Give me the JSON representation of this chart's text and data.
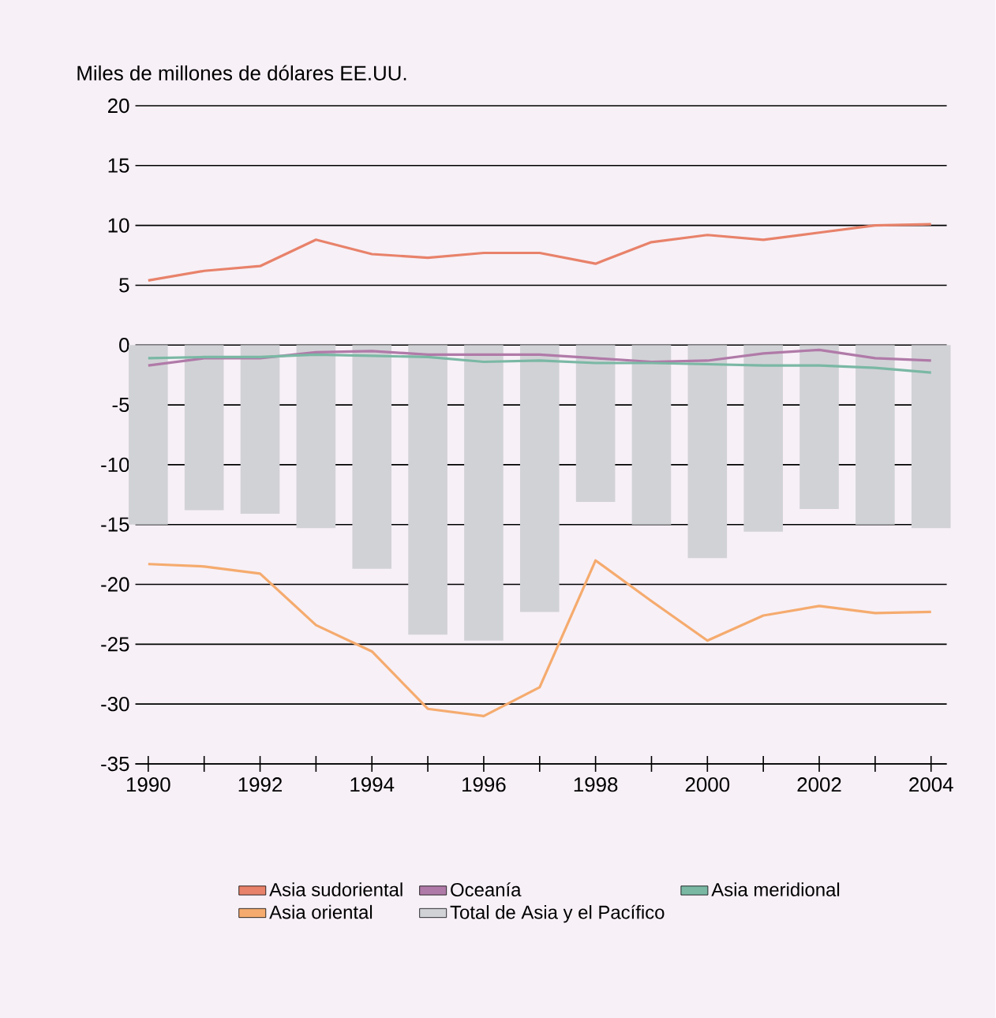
{
  "chart_data": {
    "type": "line",
    "ylabel": "Miles de millones de dólares EE.UU.",
    "x": [
      1990,
      1991,
      1992,
      1993,
      1994,
      1995,
      1996,
      1997,
      1998,
      1999,
      2000,
      2001,
      2002,
      2003,
      2004
    ],
    "xlim": [
      1989.77,
      2004.28
    ],
    "xticks": [
      1990,
      {
        "value": 1991,
        "label": null
      },
      1992,
      {
        "value": 1993,
        "label": null
      },
      1994,
      {
        "value": 1995,
        "label": null
      },
      1996,
      {
        "value": 1997,
        "label": null
      },
      1998,
      {
        "value": 1999,
        "label": null
      },
      2000,
      {
        "value": 2001,
        "label": null
      },
      2002,
      {
        "value": 2003,
        "label": null
      },
      2004
    ],
    "ylim": [
      -35,
      20
    ],
    "yticks": [
      -35,
      -30,
      -25,
      -20,
      -15,
      -10,
      -5,
      0,
      5,
      10,
      15,
      20
    ],
    "grid": "y",
    "legend": "bottom",
    "series": [
      {
        "name": "Asia sudoriental",
        "color": "#e8826a",
        "values": [
          5.4,
          6.2,
          6.6,
          8.8,
          7.6,
          7.3,
          7.7,
          7.7,
          6.8,
          8.6,
          9.2,
          8.8,
          9.4,
          10.0,
          10.1
        ]
      },
      {
        "name": "Oceanía",
        "color": "#b07aa8",
        "values": [
          -1.7,
          -1.1,
          -1.1,
          -0.6,
          -0.5,
          -0.8,
          -0.8,
          -0.8,
          -1.1,
          -1.4,
          -1.3,
          -0.7,
          -0.4,
          -1.1,
          -1.3
        ]
      },
      {
        "name": "Asia meridional",
        "color": "#7ab8a4",
        "values": [
          -1.1,
          -1.0,
          -1.0,
          -0.8,
          -0.9,
          -1.0,
          -1.4,
          -1.3,
          -1.5,
          -1.5,
          -1.6,
          -1.7,
          -1.7,
          -1.9,
          -2.3
        ]
      },
      {
        "name": "Asia oriental",
        "color": "#f5ab6e",
        "values": [
          -18.3,
          -18.5,
          -19.1,
          -23.4,
          -25.6,
          -30.4,
          -31.0,
          -28.6,
          -18.0,
          -21.4,
          -24.7,
          -22.6,
          -21.8,
          -22.4,
          -22.3
        ]
      },
      {
        "name": "Total de Asia y el Pacífico",
        "type": "bar",
        "color": "#d1d2d6",
        "values": [
          -15.0,
          -13.8,
          -14.1,
          -15.3,
          -18.7,
          -24.2,
          -24.7,
          -22.3,
          -13.1,
          -15.0,
          -17.8,
          -15.6,
          -13.7,
          -15.0,
          -15.3
        ]
      }
    ]
  }
}
